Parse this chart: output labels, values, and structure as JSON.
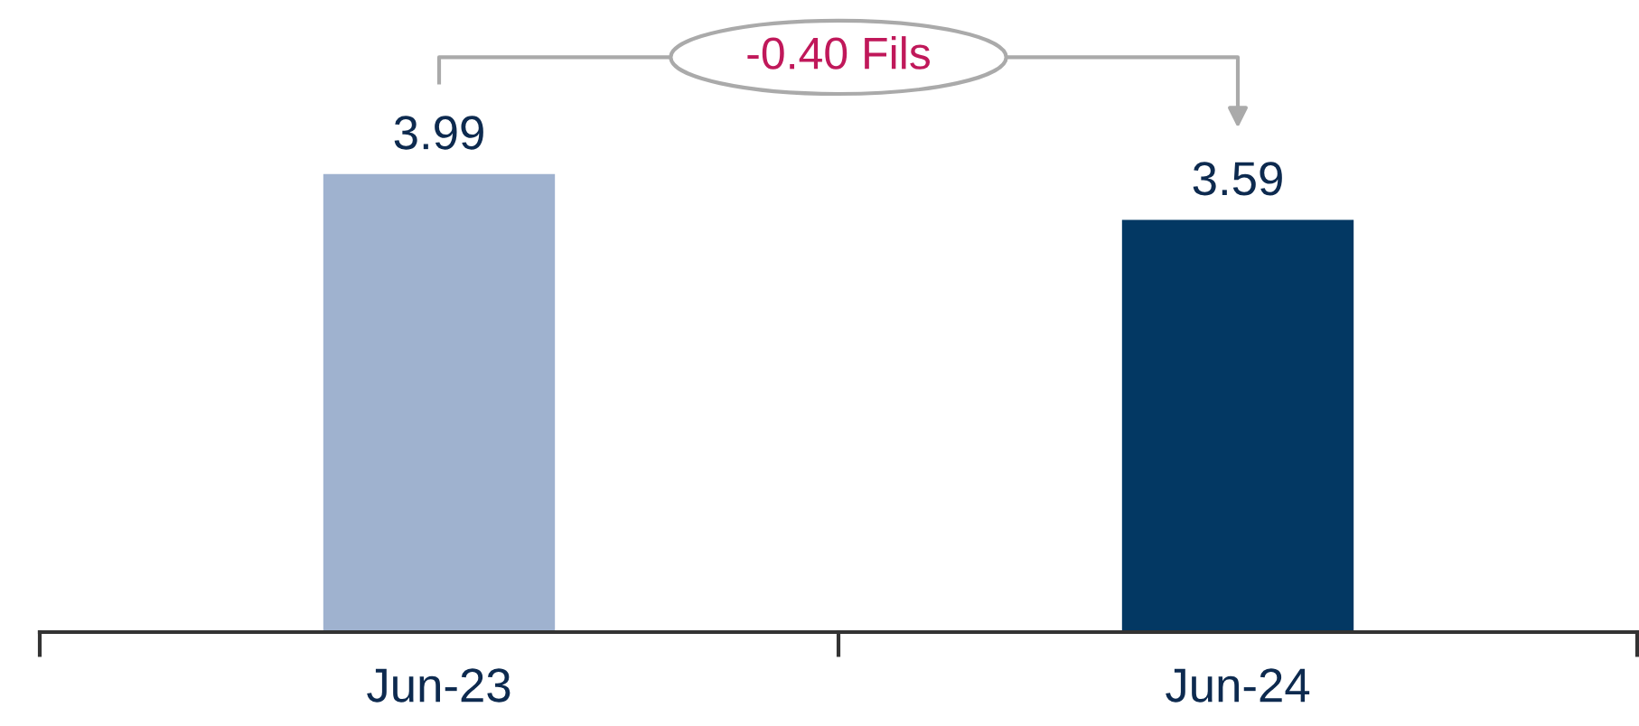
{
  "chart_data": {
    "type": "bar",
    "categories": [
      "Jun-23",
      "Jun-24"
    ],
    "values": [
      3.99,
      3.59
    ],
    "colors": [
      "#9fb2cf",
      "#033863"
    ],
    "data_labels": true,
    "annotations": [
      "-0.40 Fils"
    ]
  }
}
